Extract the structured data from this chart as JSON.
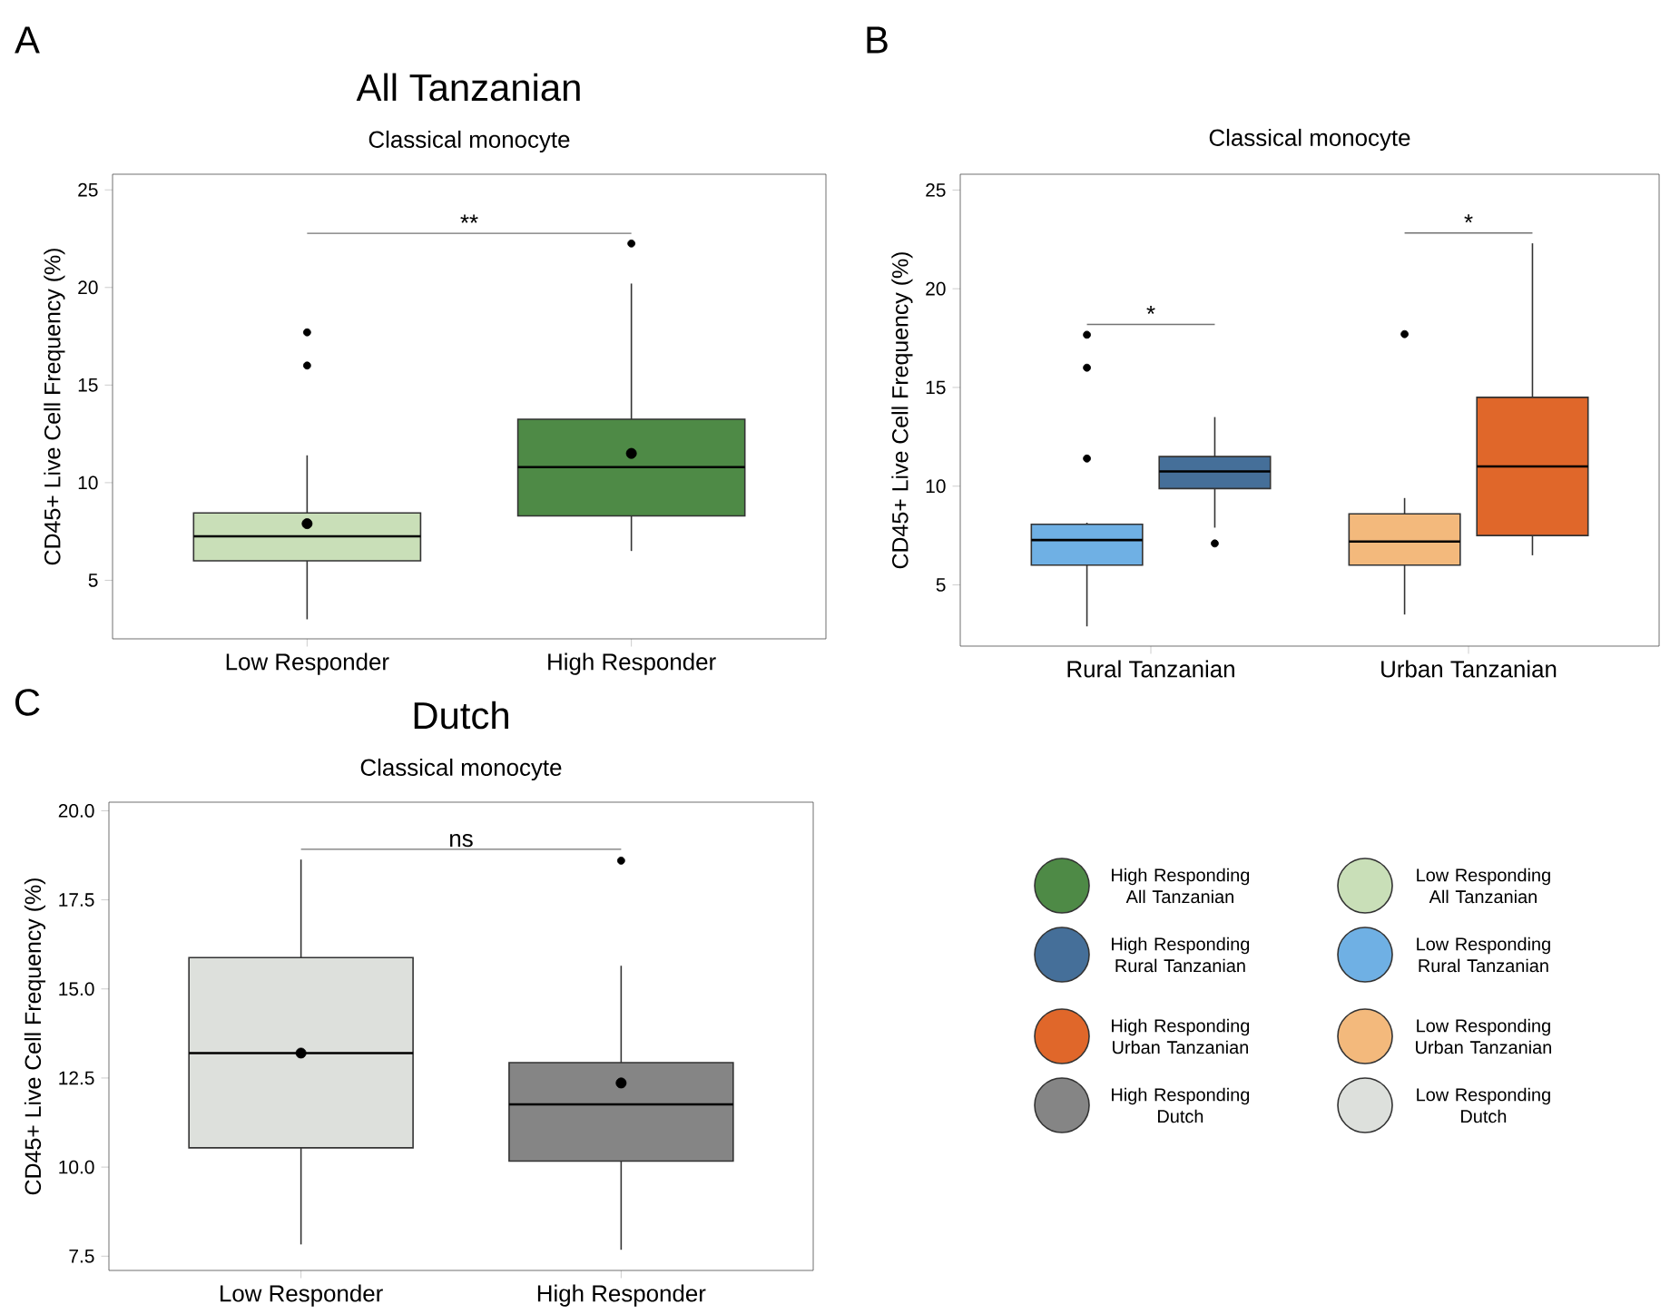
{
  "chart_data": [
    {
      "type": "box",
      "title": "All Tanzanian",
      "subtitle": "Classical monocyte",
      "ylabel": "CD45+ Live Cell Frequency (%)",
      "categories": [
        "Low Responder",
        "High Responder"
      ],
      "colors": [
        "#c9dfb8",
        "#4e8a46"
      ],
      "boxes": [
        {
          "low": 3.0,
          "q1": 6.0,
          "median": 7.25,
          "q3": 8.45,
          "high": 11.4,
          "mean": 7.9,
          "outliers": [
            17.7,
            16.0
          ]
        },
        {
          "low": 6.5,
          "q1": 8.3,
          "median": 10.8,
          "q3": 13.25,
          "high": 20.2,
          "mean": 11.5,
          "outliers": [
            22.25
          ]
        }
      ],
      "ylim": [
        2,
        25.8
      ],
      "yticks": [
        5,
        10,
        15,
        20,
        25
      ],
      "annotations": [
        "A",
        "**"
      ]
    },
    {
      "type": "box",
      "title": "Classical monocyte",
      "ylabel": "CD45+ Live Cell Frequency (%)",
      "categories": [
        "Rural Tanzanian",
        "Urban Tanzanian"
      ],
      "series": [
        {
          "colors": [
            "#6fb0e4",
            "#f3b97c"
          ],
          "boxes": [
            {
              "low": 2.9,
              "q1": 6.0,
              "median": 7.27,
              "q3": 8.07,
              "high": 8.15,
              "outliers": [
                17.67,
                16.0,
                11.4
              ]
            },
            {
              "low": 3.5,
              "q1": 6.0,
              "median": 7.2,
              "q3": 8.6,
              "high": 9.4,
              "outliers": [
                17.7
              ]
            }
          ]
        },
        {
          "colors": [
            "#456f99",
            "#e0672a"
          ],
          "boxes": [
            {
              "low": 7.9,
              "q1": 9.88,
              "median": 10.75,
              "q3": 11.5,
              "high": 13.5,
              "outliers": [
                7.1
              ]
            },
            {
              "low": 6.5,
              "q1": 7.5,
              "median": 11.0,
              "q3": 14.5,
              "high": 22.3
            }
          ]
        }
      ],
      "ylim": [
        1.9,
        25.8
      ],
      "yticks": [
        5,
        10,
        15,
        20,
        25
      ],
      "annotations": [
        "B",
        "*",
        "*"
      ]
    },
    {
      "type": "box",
      "title": "Dutch",
      "subtitle": "Classical monocyte",
      "ylabel": "CD45+ Live Cell Frequency (%)",
      "categories": [
        "Low Responder",
        "High Responder"
      ],
      "colors": [
        "#dde0dc",
        "#858585"
      ],
      "boxes": [
        {
          "low": 7.83,
          "q1": 10.54,
          "median": 13.2,
          "q3": 15.88,
          "high": 18.63,
          "mean": 13.2
        },
        {
          "low": 7.68,
          "q1": 10.17,
          "median": 11.76,
          "q3": 12.93,
          "high": 15.65,
          "mean": 12.36,
          "outliers": [
            18.6
          ]
        }
      ],
      "ylim": [
        7.1,
        20.24
      ],
      "yticks": [
        7.5,
        {
          "value": 10,
          "label": "10.0"
        },
        {
          "value": 12.5,
          "label": "12.5"
        },
        {
          "value": 15,
          "label": "15.0"
        },
        {
          "value": 17.5,
          "label": "17.5"
        },
        {
          "value": 20,
          "label": "20.0"
        }
      ],
      "annotations": [
        "C",
        "ns"
      ]
    },
    {
      "type": "other",
      "annotations": [
        "High Responding All Tanzanian",
        "Low Responding All Tanzanian",
        "High Responding Rural Tanzanian",
        "Low Responding Rural Tanzanian",
        "High Responding Urban Tanzanian",
        "Low Responding Urban Tanzanian",
        "High Responding Dutch",
        "Low Responding Dutch"
      ],
      "colors": [
        "#4e8a46",
        "#c9dfb8",
        "#456f99",
        "#6fb0e4",
        "#e0672a",
        "#f3b97c",
        "#858585",
        "#dde0dc"
      ]
    }
  ]
}
